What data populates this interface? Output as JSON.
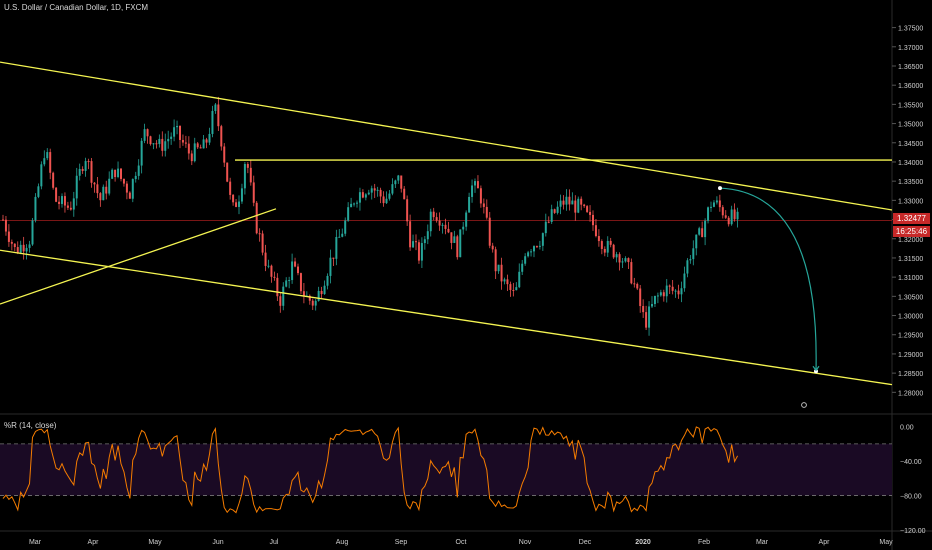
{
  "header": {
    "title": "U.S. Dollar / Canadian Dollar, 1D, FXCM"
  },
  "indicator": {
    "title": "%R (14, close)"
  },
  "price_axis": {
    "ticks": [
      "1.37500",
      "1.37000",
      "1.36500",
      "1.36000",
      "1.35500",
      "1.35000",
      "1.34500",
      "1.34000",
      "1.33500",
      "1.33000",
      "1.32500",
      "1.32000",
      "1.31500",
      "1.31000",
      "1.30500",
      "1.30000",
      "1.29500",
      "1.29000",
      "1.28500",
      "1.28000"
    ]
  },
  "indicator_axis": {
    "ticks": [
      "0.00",
      "−40.00",
      "−80.00",
      "−120.00"
    ]
  },
  "time_axis": {
    "labels": [
      "Mar",
      "Apr",
      "May",
      "Jun",
      "Jul",
      "Aug",
      "Sep",
      "Oct",
      "Nov",
      "Dec",
      "2020",
      "Feb",
      "Mar",
      "Apr",
      "May"
    ]
  },
  "last_price": {
    "price": "1.32477",
    "countdown": "16:25:46"
  },
  "colors": {
    "up": "#26a69a",
    "down": "#ef5350",
    "trend": "#f5f552",
    "projection": "#26a69a",
    "last": "#c62828",
    "wr": "#f57c00"
  },
  "chart_data": {
    "type": "candlestick",
    "price_range": [
      1.278,
      1.3775
    ],
    "horizontal_level": 1.3405,
    "last_price": 1.32477,
    "williams_r_range": [
      -120,
      10
    ],
    "williams_r_levels": [
      -20,
      -80
    ]
  }
}
